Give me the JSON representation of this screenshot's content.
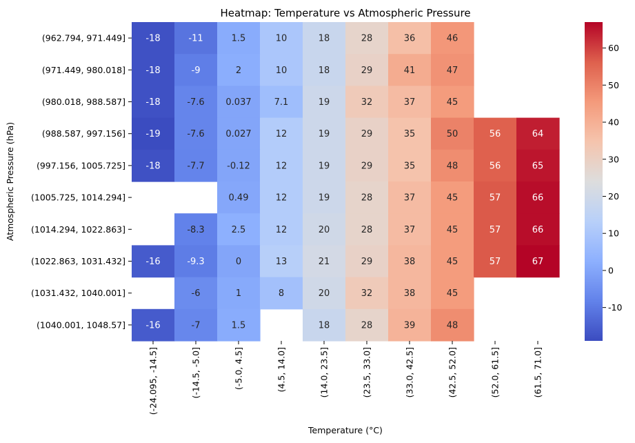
{
  "chart_data": {
    "type": "heatmap",
    "title": "Heatmap: Temperature vs Atmospheric Pressure",
    "xlabel": "Temperature (°C)",
    "ylabel": "Atmospheric Pressure (hPa)",
    "x_categories": [
      "(-24.095, -14.5]",
      "(-14.5, -5.0]",
      "(-5.0, 4.5]",
      "(4.5, 14.0]",
      "(14.0, 23.5]",
      "(23.5, 33.0]",
      "(33.0, 42.5]",
      "(42.5, 52.0]",
      "(52.0, 61.5]",
      "(61.5, 71.0]"
    ],
    "y_categories": [
      "(962.794, 971.449]",
      "(971.449, 980.018]",
      "(980.018, 988.587]",
      "(988.587, 997.156]",
      "(997.156, 1005.725]",
      "(1005.725, 1014.294]",
      "(1014.294, 1022.863]",
      "(1022.863, 1031.432]",
      "(1031.432, 1040.001]",
      "(1040.001, 1048.57]"
    ],
    "values": [
      [
        "-18",
        "-11",
        "1.5",
        "10",
        "18",
        "28",
        "36",
        "46",
        null,
        null
      ],
      [
        "-18",
        "-9",
        "2",
        "10",
        "18",
        "29",
        "41",
        "47",
        null,
        null
      ],
      [
        "-18",
        "-7.6",
        "0.037",
        "7.1",
        "19",
        "32",
        "37",
        "45",
        null,
        null
      ],
      [
        "-19",
        "-7.6",
        "0.027",
        "12",
        "19",
        "29",
        "35",
        "50",
        "56",
        "64"
      ],
      [
        "-18",
        "-7.7",
        "-0.12",
        "12",
        "19",
        "29",
        "35",
        "48",
        "56",
        "65"
      ],
      [
        null,
        null,
        "0.49",
        "12",
        "19",
        "28",
        "37",
        "45",
        "57",
        "66"
      ],
      [
        null,
        "-8.3",
        "2.5",
        "12",
        "20",
        "28",
        "37",
        "45",
        "57",
        "66"
      ],
      [
        "-16",
        "-9.3",
        "0",
        "13",
        "21",
        "29",
        "38",
        "45",
        "57",
        "67"
      ],
      [
        null,
        "-6",
        "1",
        "8",
        "20",
        "32",
        "38",
        "45",
        null,
        null
      ],
      [
        "-16",
        "-7",
        "1.5",
        null,
        "18",
        "28",
        "39",
        "48",
        null,
        null
      ]
    ],
    "colormap": "coolwarm",
    "color_range": [
      -19,
      67
    ],
    "colorbar_ticks": [
      "-10",
      "0",
      "10",
      "20",
      "30",
      "40",
      "50",
      "60"
    ],
    "colors": {
      "low": "#3b4cc0",
      "mid": "#dddddd",
      "high": "#b40426"
    },
    "legend": "colorbar-right"
  }
}
